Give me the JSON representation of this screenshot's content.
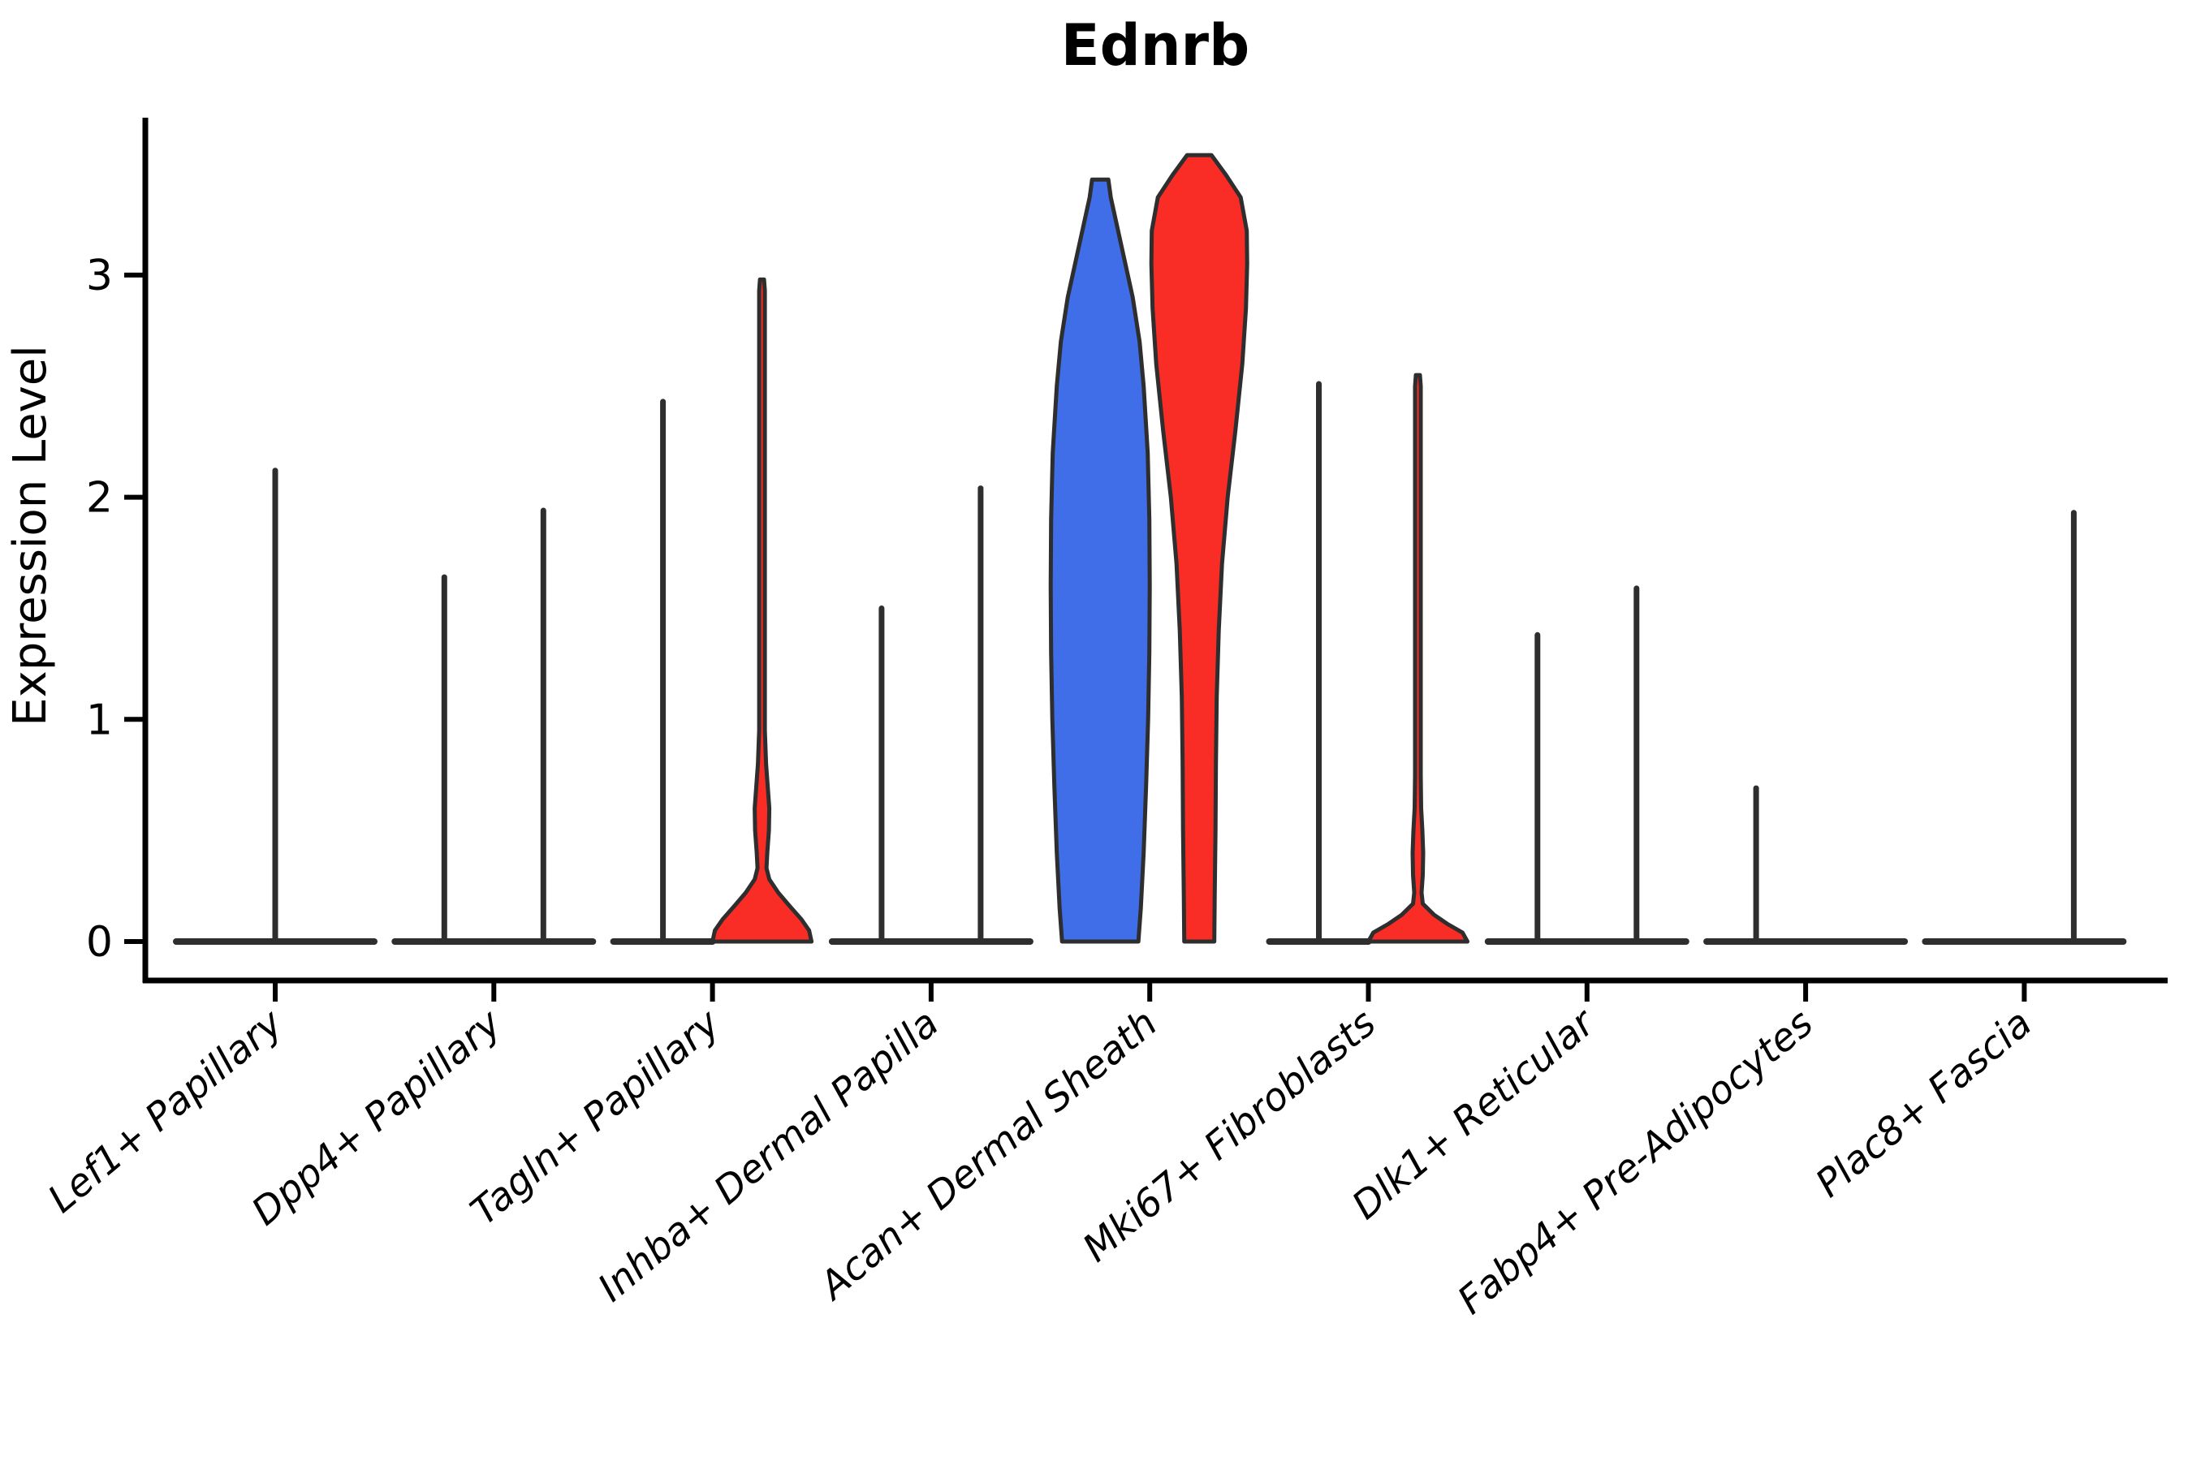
{
  "chart_data": {
    "type": "violin",
    "title": "Ednrb",
    "ylabel": "Expression Level",
    "xlabel": "",
    "yticks": [
      "0",
      "1",
      "2",
      "3"
    ],
    "ylim": [
      -0.18,
      3.73
    ],
    "grid": false,
    "legend": "none",
    "categories": [
      "Lef1+ Papillary",
      "Dpp4+ Papillary",
      "Tagln+ Papillary",
      "Inhba+ Dermal Papilla",
      "Acan+ Dermal Sheath",
      "Mki67+ Fibroblasts",
      "Dlk1+ Reticular",
      "Fabp4+ Pre-Adipocytes",
      "Plac8+ Fascia"
    ],
    "series_colors": {
      "blue_group": "#406EE8",
      "red_group": "#FA2D26",
      "outline": "#2E2E2E"
    },
    "violins": [
      {
        "category": "Lef1+ Papillary",
        "layout": "single",
        "single": {
          "max_expression": 2.12,
          "shape": "spike",
          "base_halfwidth": 122
        }
      },
      {
        "category": "Dpp4+ Papillary",
        "layout": "split",
        "blue": {
          "max_expression": 1.64,
          "shape": "spike"
        },
        "red": {
          "max_expression": 1.94,
          "shape": "spike"
        }
      },
      {
        "category": "Tagln+ Papillary",
        "layout": "split",
        "blue": {
          "max_expression": 2.43,
          "shape": "spike"
        },
        "red": {
          "max_expression": 2.98,
          "shape": "profile",
          "profile": [
            [
              0,
              122
            ],
            [
              0.05,
              116
            ],
            [
              0.1,
              97
            ],
            [
              0.16,
              68
            ],
            [
              0.22,
              40
            ],
            [
              0.28,
              18
            ],
            [
              0.33,
              11
            ],
            [
              0.4,
              13
            ],
            [
              0.5,
              17
            ],
            [
              0.6,
              18
            ],
            [
              0.7,
              14
            ],
            [
              0.8,
              10
            ],
            [
              0.95,
              7
            ],
            [
              1.5,
              7
            ],
            [
              2.5,
              7
            ],
            [
              2.93,
              7
            ],
            [
              2.98,
              5
            ]
          ]
        }
      },
      {
        "category": "Inhba+ Dermal Papilla",
        "layout": "split",
        "blue": {
          "max_expression": 1.5,
          "shape": "spike"
        },
        "red": {
          "max_expression": 2.04,
          "shape": "spike"
        }
      },
      {
        "category": "Acan+ Dermal Sheath",
        "layout": "split",
        "blue": {
          "max_expression": 3.43,
          "shape": "profile",
          "profile": [
            [
              0,
              94
            ],
            [
              0.15,
              100
            ],
            [
              0.4,
              107
            ],
            [
              0.7,
              113
            ],
            [
              1.0,
              118
            ],
            [
              1.3,
              121
            ],
            [
              1.6,
              122
            ],
            [
              1.9,
              121
            ],
            [
              2.2,
              117
            ],
            [
              2.5,
              107
            ],
            [
              2.7,
              97
            ],
            [
              2.9,
              80
            ],
            [
              3.1,
              56
            ],
            [
              3.25,
              38
            ],
            [
              3.35,
              26
            ],
            [
              3.43,
              20
            ]
          ]
        },
        "red": {
          "max_expression": 3.54,
          "shape": "profile",
          "profile": [
            [
              0,
              37
            ],
            [
              0.2,
              38
            ],
            [
              0.5,
              40
            ],
            [
              0.8,
              41
            ],
            [
              1.1,
              43
            ],
            [
              1.4,
              48
            ],
            [
              1.7,
              56
            ],
            [
              2.0,
              70
            ],
            [
              2.3,
              89
            ],
            [
              2.6,
              106
            ],
            [
              2.85,
              115
            ],
            [
              3.05,
              118
            ],
            [
              3.2,
              117
            ],
            [
              3.35,
              102
            ],
            [
              3.45,
              66
            ],
            [
              3.54,
              30
            ]
          ]
        }
      },
      {
        "category": "Mki67+ Fibroblasts",
        "layout": "split",
        "blue": {
          "max_expression": 2.51,
          "shape": "spike"
        },
        "red": {
          "max_expression": 2.55,
          "shape": "profile",
          "profile": [
            [
              0,
              122
            ],
            [
              0.04,
              110
            ],
            [
              0.08,
              72
            ],
            [
              0.12,
              40
            ],
            [
              0.17,
              12
            ],
            [
              0.22,
              9
            ],
            [
              0.3,
              12
            ],
            [
              0.4,
              13
            ],
            [
              0.5,
              11
            ],
            [
              0.6,
              8
            ],
            [
              0.75,
              7
            ],
            [
              1.5,
              7
            ],
            [
              2.5,
              7
            ],
            [
              2.55,
              5
            ]
          ]
        }
      },
      {
        "category": "Dlk1+ Reticular",
        "layout": "split",
        "blue": {
          "max_expression": 1.38,
          "shape": "spike"
        },
        "red": {
          "max_expression": 1.59,
          "shape": "spike"
        }
      },
      {
        "category": "Fabp4+ Pre-Adipocytes",
        "layout": "split",
        "blue": {
          "max_expression": 0.69,
          "shape": "spike"
        },
        "red": {
          "max_expression": 0,
          "shape": "flat"
        }
      },
      {
        "category": "Plac8+ Fascia",
        "layout": "split",
        "blue": {
          "max_expression": 0,
          "shape": "flat"
        },
        "red": {
          "max_expression": 1.93,
          "shape": "spike"
        }
      }
    ]
  }
}
